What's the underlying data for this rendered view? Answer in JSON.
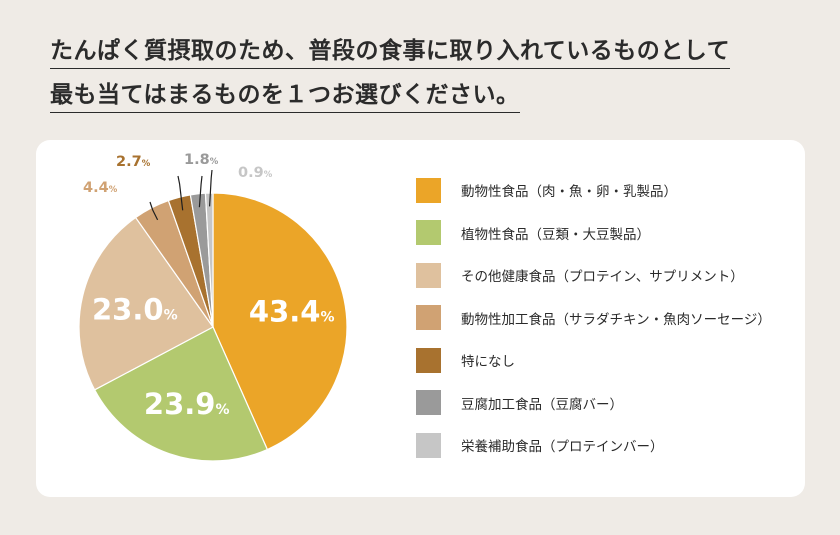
{
  "title": {
    "line1": "たんぱく質摂取のため、普段の食事に取り入れているものとして",
    "line2": "最も当てはまるものを１つお選びください。"
  },
  "chart_data": {
    "type": "pie",
    "unit": "%",
    "categories": [
      "動物性食品（肉・魚・卵・乳製品）",
      "植物性食品（豆類・大豆製品）",
      "その他健康食品（プロテイン、サプリメント）",
      "動物性加工食品（サラダチキン・魚肉ソーセージ）",
      "特になし",
      "豆腐加工食品（豆腐バー）",
      "栄養補助食品（プロテインバー）"
    ],
    "values": [
      43.4,
      23.9,
      23.0,
      4.4,
      2.7,
      1.8,
      0.9
    ],
    "value_labels": [
      "43.4",
      "23.9",
      "23.0",
      "4.4",
      "2.7",
      "1.8",
      "0.9"
    ],
    "colors": [
      "#eba528",
      "#b3c96f",
      "#dfc19e",
      "#d0a273",
      "#a8722f",
      "#9a9a9a",
      "#c6c6c6"
    ],
    "label_colors": [
      "#ffffff",
      "#ffffff",
      "#ffffff",
      "#d0a273",
      "#a8722f",
      "#9a9a9a",
      "#c6c6c6"
    ],
    "legend_position": "right"
  }
}
